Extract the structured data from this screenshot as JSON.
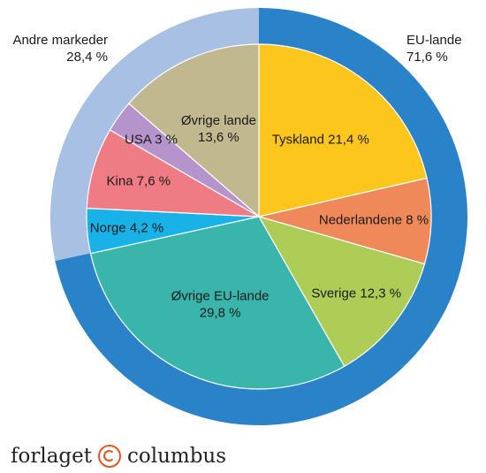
{
  "chart_data": {
    "type": "pie",
    "outer_ring": [
      {
        "label": "EU-lande",
        "value": 71.6,
        "value_label": "71,6 %",
        "color": "#2a82c9"
      },
      {
        "label": "Andre markeder",
        "value": 28.4,
        "value_label": "28,4 %",
        "color": "#a8c0e4"
      }
    ],
    "inner_slices": [
      {
        "label": "Tyskland 21,4 %",
        "value": 21.4,
        "color": "#fdc61d"
      },
      {
        "label": "Nederlandene 8 %",
        "value": 8.0,
        "color": "#f0895a"
      },
      {
        "label": "Sverige 12,3 %",
        "value": 12.3,
        "color": "#aecd57"
      },
      {
        "label": "Øvrige EU-lande",
        "label2": "29,8 %",
        "value": 29.8,
        "color": "#39b5ac"
      },
      {
        "label": "Norge 4,2 %",
        "value": 4.2,
        "color": "#19b2e8"
      },
      {
        "label": "Kina 7,6 %",
        "value": 7.6,
        "color": "#ef7b85"
      },
      {
        "label": "USA 3 %",
        "value": 3.0,
        "color": "#b593cb"
      },
      {
        "label": "Øvrige lande",
        "label2": "13,6 %",
        "value": 13.6,
        "color": "#c2b88f"
      }
    ]
  },
  "footer": {
    "left": "forlaget",
    "right": "columbus",
    "logo_icon": "copyright-circle-icon",
    "logo_color": "#e2581e"
  }
}
